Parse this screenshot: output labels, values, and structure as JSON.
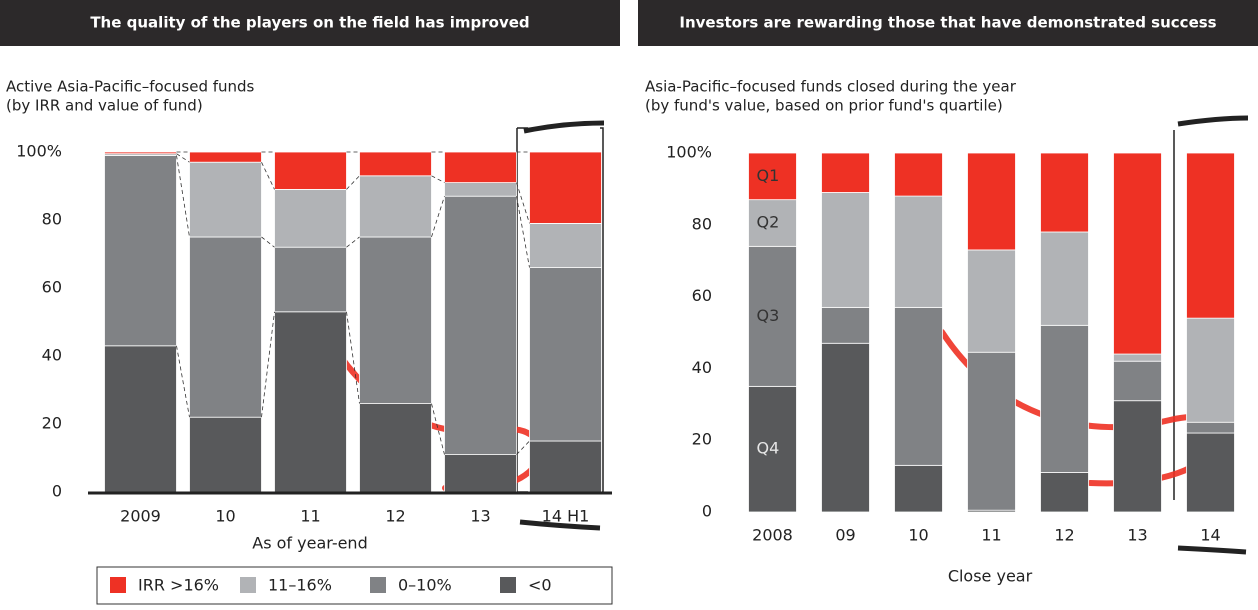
{
  "chart_data": [
    {
      "type": "bar",
      "stacked": true,
      "title": "The quality of the players on the field has improved",
      "subtitle": [
        "Active Asia-Pacific–focused funds",
        "(by IRR and value of fund)"
      ],
      "x_label": "As of year-end",
      "categories": [
        "2009",
        "10",
        "11",
        "12",
        "13",
        "14 H1"
      ],
      "series": [
        {
          "name": "<0",
          "color": "#58595b",
          "values": [
            43,
            22,
            53,
            26,
            11,
            15
          ]
        },
        {
          "name": "0–10%",
          "color": "#808285",
          "values": [
            56,
            53,
            19,
            49,
            76,
            51
          ]
        },
        {
          "name": "11–16%",
          "color": "#b1b3b6",
          "values": [
            0.5,
            22,
            17,
            18,
            4,
            13
          ]
        },
        {
          "name": "IRR >16%",
          "color": "#ee3124",
          "values": [
            0.5,
            3,
            11,
            7,
            9,
            21
          ]
        }
      ],
      "ylim": [
        0,
        100
      ],
      "yticks": [
        0,
        20,
        40,
        60,
        80,
        {
          "value": 100,
          "label": "100%"
        }
      ]
    },
    {
      "type": "bar",
      "stacked": true,
      "title": "Investors are rewarding those that have demonstrated success",
      "subtitle": [
        "Asia-Pacific–focused funds closed during the year",
        "(by fund's value, based on prior fund's quartile)"
      ],
      "x_label": "Close year",
      "categories": [
        "2008",
        "09",
        "10",
        "11",
        "12",
        "13",
        "14"
      ],
      "series": [
        {
          "name": "Q4",
          "color": "#58595b",
          "values": [
            35,
            47,
            13,
            0.5,
            11,
            31,
            22
          ]
        },
        {
          "name": "Q3",
          "color": "#808285",
          "values": [
            39,
            10,
            44,
            44,
            41,
            11,
            3
          ]
        },
        {
          "name": "Q2",
          "color": "#b1b3b6",
          "values": [
            13,
            32,
            31,
            28.5,
            26,
            2,
            29
          ]
        },
        {
          "name": "Q1",
          "color": "#ee3124",
          "values": [
            13,
            11,
            12,
            27,
            22,
            56,
            46
          ]
        }
      ],
      "ylim": [
        0,
        100
      ],
      "yticks": [
        0,
        20,
        40,
        60,
        80,
        {
          "value": 100,
          "label": "100%"
        }
      ]
    }
  ]
}
